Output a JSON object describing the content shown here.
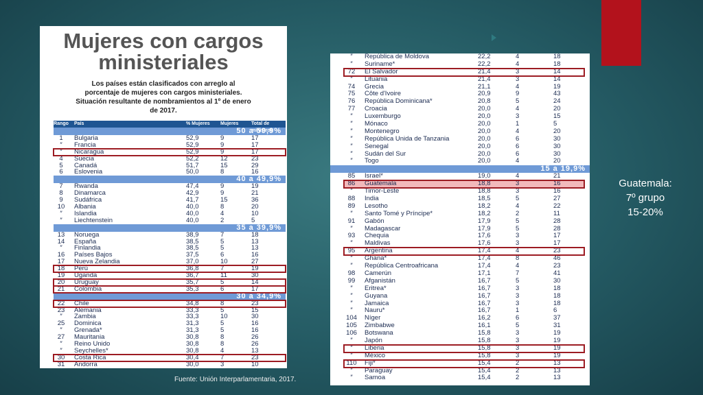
{
  "left_table": {
    "title": "Mujeres con cargos ministeriales",
    "subtitle": "Los países están clasificados con arreglo al porcentaje de mujeres con cargos ministeriales. Situación resultante de nombramientos al 1º de enero de 2017.",
    "headers": [
      "Rango",
      "País",
      "% Mujeres",
      "Mujeres",
      "Total de ministros"
    ],
    "groups": [
      {
        "label": "50 a 59,9%",
        "highlight": [
          2
        ],
        "rows": [
          [
            "1",
            "Bulgaria",
            "52,9",
            "9",
            "17"
          ],
          [
            "″",
            "Francia",
            "52,9",
            "9",
            "17"
          ],
          [
            "″",
            "Nicaragua",
            "52,9",
            "9",
            "17"
          ],
          [
            "4",
            "Suecia",
            "52,2",
            "12",
            "23"
          ],
          [
            "5",
            "Canadá",
            "51,7",
            "15",
            "29"
          ],
          [
            "6",
            "Eslovenia",
            "50,0",
            "8",
            "16"
          ]
        ]
      },
      {
        "label": "40 a 49,9%",
        "highlight": [],
        "rows": [
          [
            "7",
            "Rwanda",
            "47,4",
            "9",
            "19"
          ],
          [
            "8",
            "Dinamarca",
            "42,9",
            "9",
            "21"
          ],
          [
            "9",
            "Sudáfrica",
            "41,7",
            "15",
            "36"
          ],
          [
            "10",
            "Albania",
            "40,0",
            "8",
            "20"
          ],
          [
            "″",
            "Islandia",
            "40,0",
            "4",
            "10"
          ],
          [
            "″",
            "Liechtenstein",
            "40,0",
            "2",
            "5"
          ]
        ]
      },
      {
        "label": "35 a 39,9%",
        "highlight": [
          5,
          7,
          8
        ],
        "rows": [
          [
            "13",
            "Noruega",
            "38,9",
            "7",
            "18"
          ],
          [
            "14",
            "España",
            "38,5",
            "5",
            "13"
          ],
          [
            "″",
            "Finlandia",
            "38,5",
            "5",
            "13"
          ],
          [
            "16",
            "Países Bajos",
            "37,5",
            "6",
            "16"
          ],
          [
            "17",
            "Nueva Zelandia",
            "37,0",
            "10",
            "27"
          ],
          [
            "18",
            "Perú",
            "36,8",
            "7",
            "19"
          ],
          [
            "19",
            "Uganda",
            "36,7",
            "11",
            "30"
          ],
          [
            "20",
            "Uruguay",
            "35,7",
            "5",
            "14"
          ],
          [
            "21",
            "Colombia",
            "35,3",
            "6",
            "17"
          ]
        ]
      },
      {
        "label": "30 a 34,9%",
        "highlight": [
          0,
          8
        ],
        "rows": [
          [
            "22",
            "Chile",
            "34,8",
            "8",
            "23"
          ],
          [
            "23",
            "Alemania",
            "33,3",
            "5",
            "15"
          ],
          [
            "″",
            "Zambia",
            "33,3",
            "10",
            "30"
          ],
          [
            "25",
            "Dominica",
            "31,3",
            "5",
            "16"
          ],
          [
            "″",
            "Grenada*",
            "31,3",
            "5",
            "16"
          ],
          [
            "27",
            "Mauritania",
            "30,8",
            "8",
            "26"
          ],
          [
            "″",
            "Reino Unido",
            "30,8",
            "8",
            "26"
          ],
          [
            "″",
            "Seychelles*",
            "30,8",
            "4",
            "13"
          ],
          [
            "30",
            "Costa Rica",
            "30,4",
            "7",
            "23"
          ],
          [
            "31",
            "Andorra",
            "30,0",
            "3",
            "10"
          ]
        ]
      }
    ]
  },
  "source": "Fuente: Unión Interparlamentaria, 2017.",
  "right_table": {
    "groups": [
      {
        "label": null,
        "highlight": [
          2
        ],
        "rows": [
          [
            "″",
            "República de Moldova",
            "22,2",
            "4",
            "18"
          ],
          [
            "″",
            "Suriname*",
            "22,2",
            "4",
            "18"
          ],
          [
            "72",
            "El Salvador",
            "21,4",
            "3",
            "14"
          ],
          [
            "″",
            "Lituania",
            "21,4",
            "3",
            "14"
          ],
          [
            "74",
            "Grecia",
            "21,1",
            "4",
            "19"
          ],
          [
            "75",
            "Côte d'Ivoire",
            "20,9",
            "9",
            "43"
          ],
          [
            "76",
            "República Dominicana*",
            "20,8",
            "5",
            "24"
          ],
          [
            "77",
            "Croacia",
            "20,0",
            "4",
            "20"
          ],
          [
            "″",
            "Luxemburgo",
            "20,0",
            "3",
            "15"
          ],
          [
            "″",
            "Mónaco",
            "20,0",
            "1",
            "5"
          ],
          [
            "″",
            "Montenegro",
            "20,0",
            "4",
            "20"
          ],
          [
            "″",
            "República Unida de Tanzania",
            "20,0",
            "6",
            "30"
          ],
          [
            "″",
            "Senegal",
            "20,0",
            "6",
            "30"
          ],
          [
            "″",
            "Sudán del Sur",
            "20,0",
            "6",
            "30"
          ],
          [
            "″",
            "Togo",
            "20,0",
            "4",
            "20"
          ]
        ]
      },
      {
        "label": "15 a 19,9%",
        "highlight": [
          1,
          10,
          23,
          25
        ],
        "rows": [
          [
            "85",
            "Israel*",
            "19,0",
            "4",
            "21"
          ],
          [
            "86",
            "Guatemala",
            "18,8",
            "3",
            "16"
          ],
          [
            "″",
            "Timor-Leste",
            "18,8",
            "3",
            "16"
          ],
          [
            "88",
            "India",
            "18,5",
            "5",
            "27"
          ],
          [
            "89",
            "Lesotho",
            "18,2",
            "4",
            "22"
          ],
          [
            "″",
            "Santo Tomé y Príncipe*",
            "18,2",
            "2",
            "11"
          ],
          [
            "91",
            "Gabón",
            "17,9",
            "5",
            "28"
          ],
          [
            "″",
            "Madagascar",
            "17,9",
            "5",
            "28"
          ],
          [
            "93",
            "Chequia",
            "17,6",
            "3",
            "17"
          ],
          [
            "″",
            "Maldivas",
            "17,6",
            "3",
            "17"
          ],
          [
            "95",
            "Argentina",
            "17,4",
            "4",
            "23"
          ],
          [
            "″",
            "Ghana*",
            "17,4",
            "8",
            "46"
          ],
          [
            "″",
            "República Centroafricana",
            "17,4",
            "4",
            "23"
          ],
          [
            "98",
            "Camerún",
            "17,1",
            "7",
            "41"
          ],
          [
            "99",
            "Afganistán",
            "16,7",
            "5",
            "30"
          ],
          [
            "″",
            "Eritrea*",
            "16,7",
            "3",
            "18"
          ],
          [
            "″",
            "Guyana",
            "16,7",
            "3",
            "18"
          ],
          [
            "″",
            "Jamaica",
            "16,7",
            "3",
            "18"
          ],
          [
            "″",
            "Nauru*",
            "16,7",
            "1",
            "6"
          ],
          [
            "104",
            "Níger",
            "16,2",
            "6",
            "37"
          ],
          [
            "105",
            "Zimbabwe",
            "16,1",
            "5",
            "31"
          ],
          [
            "106",
            "Botswana",
            "15,8",
            "3",
            "19"
          ],
          [
            "″",
            "Japón",
            "15,8",
            "3",
            "19"
          ],
          [
            "″",
            "Liberia",
            "15,8",
            "3",
            "19"
          ],
          [
            "″",
            "México",
            "15,8",
            "3",
            "19"
          ],
          [
            "110",
            "Fiji*",
            "15,4",
            "2",
            "13"
          ],
          [
            "″",
            "Paraguay",
            "15,4",
            "2",
            "13"
          ],
          [
            "″",
            "Samoa",
            "15,4",
            "2",
            "13"
          ]
        ]
      }
    ]
  },
  "note": {
    "lines": [
      "Guatemala:",
      "7º grupo",
      "15-20%"
    ]
  }
}
